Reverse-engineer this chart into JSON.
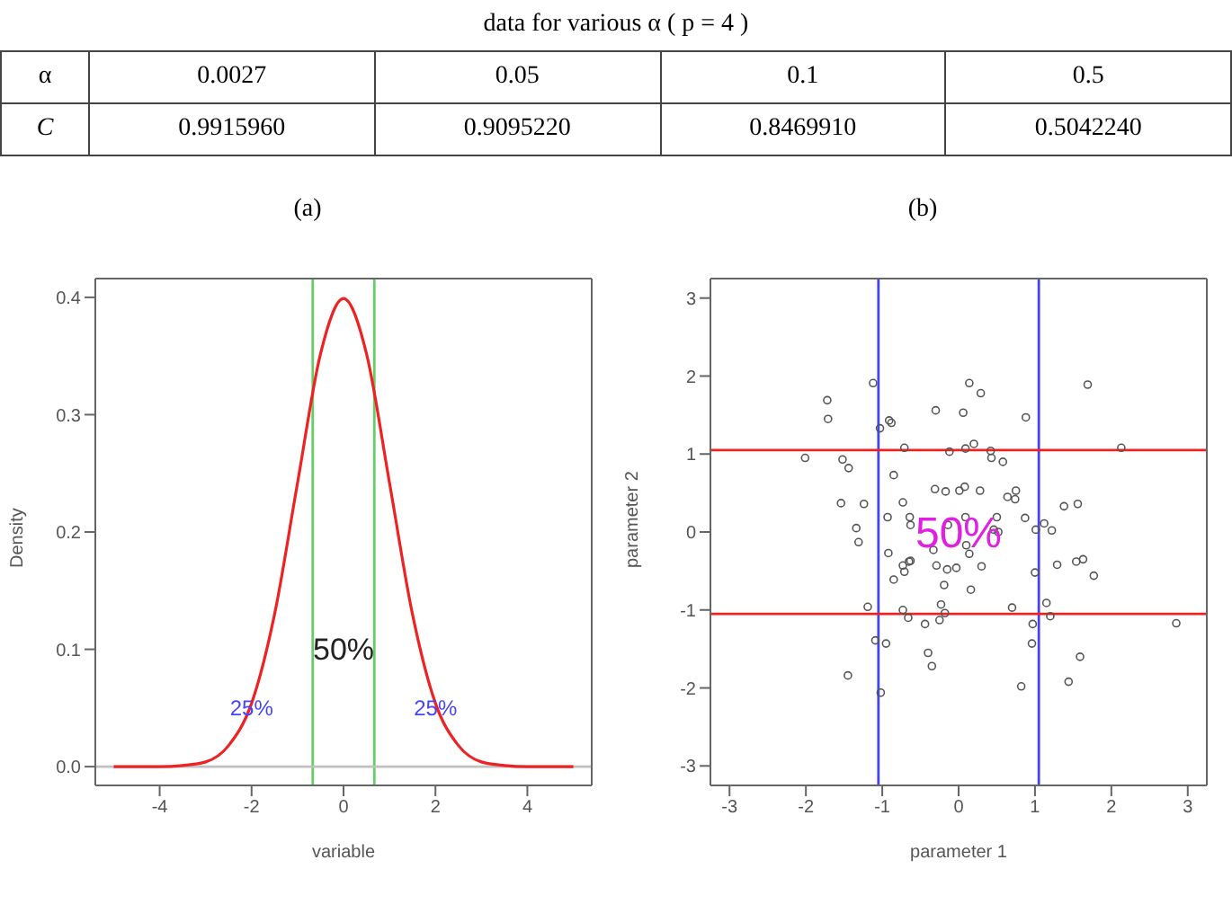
{
  "chart_data": [
    {
      "type": "other",
      "title": "data for various α ( p = 4 )",
      "xlabel": "α",
      "categories": [
        "0.0027",
        "0.05",
        "0.1",
        "0.5"
      ],
      "series": [
        {
          "name": "C",
          "values": [
            0.991596,
            0.909522,
            0.846991,
            0.504224
          ],
          "value_labels": [
            "0.9915960",
            "0.9095220",
            "0.8469910",
            "0.5042240"
          ]
        }
      ]
    },
    {
      "type": "line",
      "title": "(a)",
      "xlabel": "variable",
      "ylabel": "Density",
      "marker": "none",
      "xlim": [
        -5.4,
        5.4
      ],
      "ylim": [
        -0.016,
        0.416
      ],
      "xticks": [
        -4,
        -2,
        0,
        2,
        4
      ],
      "yticks": [
        {
          "value": 0,
          "label": "0.0"
        },
        0.1,
        0.2,
        0.3,
        0.4
      ],
      "x": [
        -5,
        -4.5,
        -4,
        -3.5,
        -3,
        -2.5,
        -2,
        -1.5,
        -1,
        -0.5,
        0,
        0.5,
        1,
        1.5,
        2,
        2.5,
        3,
        3.5,
        4,
        4.5,
        5
      ],
      "series": [
        {
          "color": "#ee2222",
          "values": [
            0,
            0,
            0,
            0.001,
            0.004,
            0.018,
            0.054,
            0.13,
            0.242,
            0.352,
            0.399,
            0.352,
            0.242,
            0.13,
            0.054,
            0.018,
            0.004,
            0.001,
            0,
            0,
            0
          ]
        }
      ],
      "ref_lines": [
        {
          "axis": "x",
          "value": -0.67,
          "color": "#66cc66"
        },
        {
          "axis": "x",
          "value": 0.67,
          "color": "#66cc66"
        },
        {
          "axis": "y",
          "value": 0,
          "color": "#c0c0c0"
        }
      ],
      "annotations": [
        "50%",
        {
          "text": "25%",
          "x": -2,
          "y": 0.05
        },
        {
          "text": "25%",
          "x": 2,
          "y": 0.05
        }
      ]
    },
    {
      "type": "scatter",
      "title": "(b)",
      "xlabel": "parameter 1",
      "ylabel": "parameter 2",
      "marker": "circle",
      "xlim": [
        -3.25,
        3.25
      ],
      "ylim": [
        -3.25,
        3.25
      ],
      "xticks": [
        -3,
        -2,
        -1,
        0,
        1,
        2,
        3
      ],
      "yticks": [
        -3,
        -2,
        -1,
        0,
        1,
        2,
        3
      ],
      "series": [
        {
          "color": "#555555",
          "x": [
            -2.01,
            -1.72,
            -1.71,
            -1.52,
            -1.44,
            -1.54,
            -1.24,
            -1.34,
            -1.31,
            -1.12,
            -1.03,
            -0.91,
            -0.88,
            -0.71,
            -0.85,
            -0.73,
            -0.93,
            -0.64,
            -0.63,
            -0.3,
            -0.31,
            -0.17,
            -0.12,
            0.14,
            0.29,
            0.06,
            0.09,
            0.2,
            0.42,
            0.43,
            0.58,
            0.01,
            0.08,
            0.28,
            0.64,
            0.74,
            0.75,
            0.88,
            0.87,
            0.5,
            0.46,
            0.52,
            0.09,
            -0.14,
            1.01,
            1.12,
            1.22,
            1.38,
            1.56,
            1.69,
            2.13,
            -0.92,
            -0.85,
            -0.73,
            -0.71,
            -0.65,
            -0.63,
            -0.33,
            -0.29,
            -0.15,
            -0.03,
            -0.19,
            0.1,
            0.14,
            0.16,
            0.3,
            -1.19,
            -0.73,
            -0.66,
            -0.44,
            -0.23,
            -0.25,
            -0.18,
            -1.09,
            -0.95,
            -1.45,
            -1.02,
            -0.4,
            -0.35,
            0.7,
            1,
            1.15,
            1.2,
            0.97,
            0.96,
            0.82,
            1.29,
            1.54,
            1.63,
            1.77,
            1.59,
            1.44,
            2.85
          ],
          "values": [
            0.95,
            1.69,
            1.45,
            0.93,
            0.82,
            0.37,
            0.36,
            0.05,
            -0.13,
            1.91,
            1.33,
            1.43,
            1.4,
            1.08,
            0.73,
            0.38,
            0.19,
            0.19,
            0.09,
            1.56,
            0.55,
            0.52,
            1.03,
            1.91,
            1.78,
            1.53,
            1.07,
            1.13,
            1.04,
            0.95,
            0.9,
            0.53,
            0.58,
            0.53,
            0.45,
            0.42,
            0.53,
            1.47,
            0.18,
            0.19,
            0.03,
            0,
            0.19,
            0.09,
            0.03,
            0.11,
            0.02,
            0.33,
            0.36,
            1.89,
            1.08,
            -0.27,
            -0.61,
            -0.43,
            -0.51,
            -0.38,
            -0.37,
            -0.23,
            -0.43,
            -0.48,
            -0.46,
            -0.68,
            -0.17,
            -0.28,
            -0.74,
            -0.44,
            -0.96,
            -1,
            -1.1,
            -1.18,
            -0.93,
            -1.13,
            -1.04,
            -1.39,
            -1.43,
            -1.84,
            -2.06,
            -1.55,
            -1.72,
            -0.97,
            -0.52,
            -0.91,
            -1.08,
            -1.18,
            -1.43,
            -1.98,
            -0.42,
            -0.38,
            -0.35,
            -0.56,
            -1.6,
            -1.92,
            -1.17
          ]
        }
      ],
      "ref_lines": [
        {
          "axis": "x",
          "value": -1.05,
          "color": "#4444ee"
        },
        {
          "axis": "x",
          "value": 1.05,
          "color": "#4444ee"
        },
        {
          "axis": "y",
          "value": 1.05,
          "color": "#ee2222"
        },
        {
          "axis": "y",
          "value": -1.05,
          "color": "#ee2222"
        }
      ],
      "annotations": [
        "50%"
      ]
    }
  ]
}
